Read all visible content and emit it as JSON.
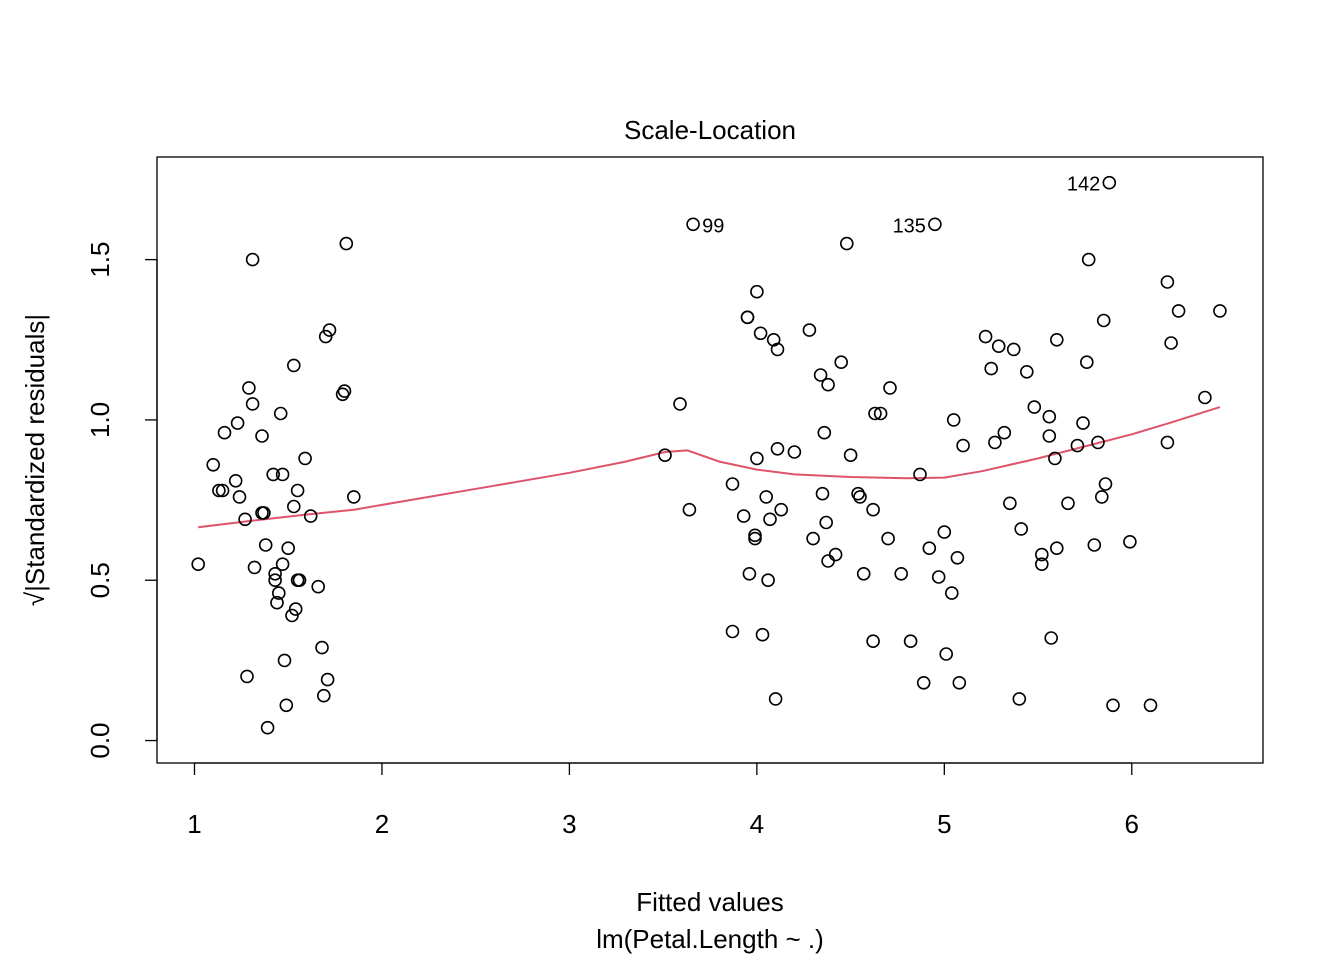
{
  "chart_data": {
    "type": "scatter",
    "title": "Scale-Location",
    "xlabel": "Fitted values",
    "ylabel": "√|Standardized residuals|",
    "sublabel": "lm(Petal.Length ~ .)",
    "xlim": [
      0.8,
      6.7
    ],
    "ylim": [
      -0.07,
      1.82
    ],
    "xticks": [
      1,
      2,
      3,
      4,
      5,
      6
    ],
    "xtick_labels": [
      "1",
      "2",
      "3",
      "4",
      "5",
      "6"
    ],
    "yticks": [
      0.0,
      0.5,
      1.0,
      1.5
    ],
    "ytick_labels": [
      "0.0",
      "0.5",
      "1.0",
      "1.5"
    ],
    "grid": false,
    "point_color": "#000000",
    "smooth_color": "#DF536B",
    "points": [
      [
        1.02,
        0.55
      ],
      [
        1.1,
        0.86
      ],
      [
        1.13,
        0.78
      ],
      [
        1.15,
        0.78
      ],
      [
        1.16,
        0.96
      ],
      [
        1.22,
        0.81
      ],
      [
        1.23,
        0.99
      ],
      [
        1.24,
        0.76
      ],
      [
        1.27,
        0.69
      ],
      [
        1.28,
        0.2
      ],
      [
        1.29,
        1.1
      ],
      [
        1.31,
        1.05
      ],
      [
        1.31,
        1.5
      ],
      [
        1.32,
        0.54
      ],
      [
        1.36,
        0.95
      ],
      [
        1.36,
        0.71
      ],
      [
        1.37,
        0.71
      ],
      [
        1.38,
        0.61
      ],
      [
        1.39,
        0.04
      ],
      [
        1.42,
        0.83
      ],
      [
        1.43,
        0.52
      ],
      [
        1.43,
        0.5
      ],
      [
        1.44,
        0.43
      ],
      [
        1.45,
        0.46
      ],
      [
        1.46,
        1.02
      ],
      [
        1.47,
        0.55
      ],
      [
        1.47,
        0.83
      ],
      [
        1.48,
        0.25
      ],
      [
        1.49,
        0.11
      ],
      [
        1.5,
        0.6
      ],
      [
        1.52,
        0.39
      ],
      [
        1.53,
        0.73
      ],
      [
        1.53,
        1.17
      ],
      [
        1.54,
        0.41
      ],
      [
        1.55,
        0.78
      ],
      [
        1.55,
        0.5
      ],
      [
        1.56,
        0.5
      ],
      [
        1.59,
        0.88
      ],
      [
        1.62,
        0.7
      ],
      [
        1.66,
        0.48
      ],
      [
        1.68,
        0.29
      ],
      [
        1.69,
        0.14
      ],
      [
        1.7,
        1.26
      ],
      [
        1.71,
        0.19
      ],
      [
        1.72,
        1.28
      ],
      [
        1.79,
        1.08
      ],
      [
        1.8,
        1.09
      ],
      [
        1.81,
        1.55
      ],
      [
        1.85,
        0.76
      ],
      [
        3.51,
        0.89
      ],
      [
        3.59,
        1.05
      ],
      [
        3.64,
        0.72
      ],
      [
        3.66,
        1.61
      ],
      [
        3.87,
        0.8
      ],
      [
        3.87,
        0.34
      ],
      [
        3.93,
        0.7
      ],
      [
        3.95,
        1.32
      ],
      [
        3.95,
        1.32
      ],
      [
        3.96,
        0.52
      ],
      [
        3.99,
        0.64
      ],
      [
        3.99,
        0.63
      ],
      [
        4.0,
        0.88
      ],
      [
        4.0,
        1.4
      ],
      [
        4.02,
        1.27
      ],
      [
        4.03,
        0.33
      ],
      [
        4.05,
        0.76
      ],
      [
        4.06,
        0.5
      ],
      [
        4.07,
        0.69
      ],
      [
        4.09,
        1.25
      ],
      [
        4.1,
        0.13
      ],
      [
        4.11,
        0.91
      ],
      [
        4.11,
        1.22
      ],
      [
        4.13,
        0.72
      ],
      [
        4.2,
        0.9
      ],
      [
        4.28,
        1.28
      ],
      [
        4.3,
        0.63
      ],
      [
        4.34,
        1.14
      ],
      [
        4.35,
        0.77
      ],
      [
        4.36,
        0.96
      ],
      [
        4.37,
        0.68
      ],
      [
        4.38,
        1.11
      ],
      [
        4.38,
        0.56
      ],
      [
        4.42,
        0.58
      ],
      [
        4.45,
        1.18
      ],
      [
        4.48,
        1.55
      ],
      [
        4.5,
        0.89
      ],
      [
        4.54,
        0.77
      ],
      [
        4.55,
        0.76
      ],
      [
        4.57,
        0.52
      ],
      [
        4.62,
        0.31
      ],
      [
        4.62,
        0.72
      ],
      [
        4.63,
        1.02
      ],
      [
        4.66,
        1.02
      ],
      [
        4.7,
        0.63
      ],
      [
        4.71,
        1.1
      ],
      [
        4.77,
        0.52
      ],
      [
        4.82,
        0.31
      ],
      [
        4.87,
        0.83
      ],
      [
        4.89,
        0.18
      ],
      [
        4.92,
        0.6
      ],
      [
        4.95,
        1.61
      ],
      [
        4.97,
        0.51
      ],
      [
        5.0,
        0.65
      ],
      [
        5.01,
        0.27
      ],
      [
        5.04,
        0.46
      ],
      [
        5.05,
        1.0
      ],
      [
        5.07,
        0.57
      ],
      [
        5.08,
        0.18
      ],
      [
        5.1,
        0.92
      ],
      [
        5.22,
        1.26
      ],
      [
        5.25,
        1.16
      ],
      [
        5.27,
        0.93
      ],
      [
        5.29,
        1.23
      ],
      [
        5.32,
        0.96
      ],
      [
        5.35,
        0.74
      ],
      [
        5.37,
        1.22
      ],
      [
        5.4,
        0.13
      ],
      [
        5.41,
        0.66
      ],
      [
        5.44,
        1.15
      ],
      [
        5.48,
        1.04
      ],
      [
        5.52,
        0.58
      ],
      [
        5.52,
        0.55
      ],
      [
        5.56,
        1.01
      ],
      [
        5.56,
        0.95
      ],
      [
        5.57,
        0.32
      ],
      [
        5.59,
        0.88
      ],
      [
        5.6,
        0.6
      ],
      [
        5.6,
        1.25
      ],
      [
        5.66,
        0.74
      ],
      [
        5.71,
        0.92
      ],
      [
        5.74,
        0.99
      ],
      [
        5.76,
        1.18
      ],
      [
        5.77,
        1.5
      ],
      [
        5.8,
        0.61
      ],
      [
        5.82,
        0.93
      ],
      [
        5.84,
        0.76
      ],
      [
        5.85,
        1.31
      ],
      [
        5.86,
        0.8
      ],
      [
        5.9,
        0.11
      ],
      [
        5.99,
        0.62
      ],
      [
        6.1,
        0.11
      ],
      [
        6.19,
        0.93
      ],
      [
        6.19,
        1.43
      ],
      [
        6.21,
        1.24
      ],
      [
        6.25,
        1.34
      ],
      [
        6.39,
        1.07
      ],
      [
        6.47,
        1.34
      ],
      [
        5.88,
        1.74
      ]
    ],
    "labeled_points": [
      {
        "label": "99",
        "x": 3.66,
        "y": 1.61
      },
      {
        "label": "135",
        "x": 4.95,
        "y": 1.61
      },
      {
        "label": "142",
        "x": 5.88,
        "y": 1.74
      }
    ],
    "smooth_line": [
      [
        1.02,
        0.665
      ],
      [
        1.3,
        0.685
      ],
      [
        1.6,
        0.705
      ],
      [
        1.85,
        0.72
      ],
      [
        2.2,
        0.755
      ],
      [
        2.6,
        0.795
      ],
      [
        3.0,
        0.835
      ],
      [
        3.3,
        0.87
      ],
      [
        3.51,
        0.9
      ],
      [
        3.63,
        0.905
      ],
      [
        3.8,
        0.87
      ],
      [
        4.0,
        0.845
      ],
      [
        4.2,
        0.83
      ],
      [
        4.5,
        0.822
      ],
      [
        4.8,
        0.818
      ],
      [
        5.0,
        0.82
      ],
      [
        5.2,
        0.84
      ],
      [
        5.5,
        0.88
      ],
      [
        5.8,
        0.925
      ],
      [
        6.0,
        0.955
      ],
      [
        6.2,
        0.99
      ],
      [
        6.47,
        1.04
      ]
    ]
  }
}
